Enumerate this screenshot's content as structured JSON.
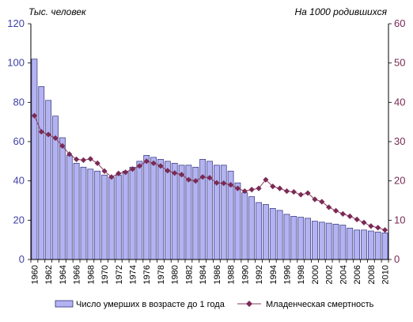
{
  "chart_data": {
    "type": "bar",
    "y_left_unit": "Тыс. человек",
    "y_right_unit": "На 1000 родившихся",
    "ylim_left": [
      0,
      120
    ],
    "ylim_right": [
      0,
      60
    ],
    "yticks_left": [
      "0",
      "20",
      "40",
      "60",
      "80",
      "100",
      "120"
    ],
    "yticks_right": [
      "0",
      "10",
      "20",
      "30",
      "40",
      "50",
      "60"
    ],
    "grid": false,
    "legend_position": "bottom",
    "x": [
      1960,
      1961,
      1962,
      1963,
      1964,
      1965,
      1966,
      1967,
      1968,
      1969,
      1970,
      1971,
      1972,
      1973,
      1974,
      1975,
      1976,
      1977,
      1978,
      1979,
      1980,
      1981,
      1982,
      1983,
      1984,
      1985,
      1986,
      1987,
      1988,
      1989,
      1990,
      1991,
      1992,
      1993,
      1994,
      1995,
      1996,
      1997,
      1998,
      1999,
      2000,
      2001,
      2002,
      2003,
      2004,
      2005,
      2006,
      2007,
      2008,
      2009,
      2010
    ],
    "series": [
      {
        "name": "Число умерших в возрасте до 1 года",
        "axis": "left",
        "kind": "bar",
        "values": [
          102,
          88,
          81,
          73,
          62,
          53,
          49,
          47,
          46,
          45,
          43,
          42,
          43,
          45,
          47,
          50,
          53,
          52,
          51,
          50,
          49,
          48,
          48,
          47,
          51,
          50,
          48,
          48,
          45,
          39,
          34,
          32,
          29,
          28,
          26,
          25,
          23,
          22,
          21.5,
          21,
          19.5,
          19,
          18.5,
          18,
          17.5,
          16,
          15,
          15,
          14.5,
          14,
          13.5
        ]
      },
      {
        "name": "Младенческая смертность",
        "axis": "right",
        "kind": "line",
        "values": [
          36.6,
          32.5,
          31.8,
          30.9,
          28.9,
          26.8,
          25.5,
          25.3,
          25.6,
          24.5,
          22.5,
          21.0,
          21.9,
          22.2,
          23.0,
          23.8,
          25.0,
          24.5,
          23.8,
          22.6,
          22.0,
          21.6,
          20.3,
          20.0,
          21.0,
          20.8,
          19.5,
          19.4,
          19.0,
          18.1,
          17.4,
          17.8,
          18.1,
          20.3,
          18.6,
          18.1,
          17.4,
          17.2,
          16.5,
          16.9,
          15.3,
          14.7,
          13.3,
          12.4,
          11.6,
          11.0,
          10.2,
          9.4,
          8.5,
          8.1,
          7.5
        ]
      }
    ],
    "xticks": [
      "1960",
      "1962",
      "1964",
      "1966",
      "1968",
      "1970",
      "1972",
      "1974",
      "1976",
      "1978",
      "1980",
      "1982",
      "1984",
      "1986",
      "1988",
      "1990",
      "1992",
      "1994",
      "1996",
      "1998",
      "2000",
      "2002",
      "2004",
      "2006",
      "2008",
      "2010"
    ],
    "colors": {
      "bar_fill": "#b3b3f2",
      "bar_stroke": "#2f2f7a",
      "line": "#8a3b60",
      "marker": "#7a2a55",
      "left_axis_text": "#3f3fa6",
      "right_axis_text": "#7a2a55"
    }
  }
}
